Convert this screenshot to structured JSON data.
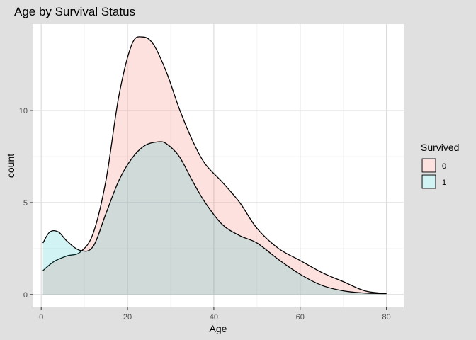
{
  "chart_data": {
    "type": "area",
    "chart_kind": "overlapping density (count) areas",
    "title": "Age by Survival Status",
    "xlabel": "Age",
    "ylabel": "count",
    "xlim": [
      -2,
      84
    ],
    "ylim": [
      -0.7,
      14.7
    ],
    "x_ticks": [
      0,
      20,
      40,
      60,
      80
    ],
    "y_ticks": [
      0,
      5,
      10
    ],
    "grid": true,
    "legend": {
      "title": "Survived",
      "position": "right"
    },
    "series": [
      {
        "name": "0",
        "fill": "#f8766d",
        "fill_opacity": 0.22,
        "stroke": "#000000",
        "x": [
          0.4,
          3,
          6,
          9,
          12,
          15,
          18,
          21,
          23.5,
          26,
          29,
          32,
          35,
          38,
          42,
          46,
          50,
          55,
          60,
          65,
          70,
          75,
          80
        ],
        "y": [
          1.3,
          1.8,
          2.1,
          2.3,
          3.3,
          6.2,
          10.8,
          13.6,
          14.0,
          13.6,
          12.1,
          10.1,
          8.4,
          7.1,
          6.1,
          5.0,
          3.6,
          2.5,
          1.85,
          1.2,
          0.7,
          0.2,
          0.05
        ]
      },
      {
        "name": "1",
        "fill": "#00bfc4",
        "fill_opacity": 0.18,
        "stroke": "#000000",
        "x": [
          0.4,
          2,
          4,
          6,
          9,
          12,
          15,
          18,
          21,
          24,
          27,
          29,
          32,
          35,
          38,
          42,
          46,
          50,
          55,
          60,
          65,
          70,
          75,
          80
        ],
        "y": [
          2.8,
          3.4,
          3.4,
          2.9,
          2.4,
          2.6,
          4.4,
          6.2,
          7.4,
          8.1,
          8.3,
          8.2,
          7.5,
          6.2,
          5.0,
          3.8,
          3.2,
          2.8,
          1.9,
          1.1,
          0.5,
          0.2,
          0.08,
          0.05
        ]
      }
    ]
  }
}
